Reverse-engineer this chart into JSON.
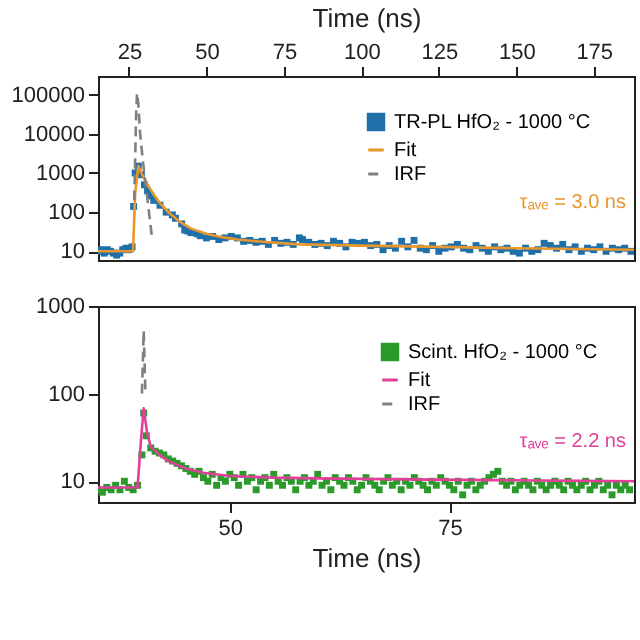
{
  "chart_data": [
    {
      "type": "scatter",
      "xlabel": "Time (ns)",
      "xlim": [
        15,
        188
      ],
      "xticks": [
        25,
        50,
        75,
        100,
        125,
        150,
        175
      ],
      "ylim": [
        6,
        300000
      ],
      "yticks": [
        10,
        100,
        1000,
        10000,
        100000
      ],
      "log": "y",
      "legend": "top right",
      "annotations": [
        "τₐᵥₑ = 3.0 ns"
      ],
      "series": [
        {
          "name": "TR-PL  HfO₂ - 1000 °C",
          "marker": "square",
          "color": "#1f6fa8",
          "x": [
            15,
            16,
            17,
            18,
            19,
            20,
            21,
            22,
            23,
            24,
            25,
            26,
            26.5,
            27,
            28,
            29,
            30,
            31,
            32,
            33,
            35,
            37,
            39,
            40,
            42,
            43,
            44,
            45,
            47,
            48,
            50,
            52,
            54,
            56,
            58,
            60,
            62,
            64,
            66,
            68,
            70,
            72,
            74,
            76,
            78,
            80,
            81,
            83,
            85,
            87,
            89,
            91,
            93,
            95,
            97,
            99,
            101,
            103,
            105,
            107,
            109,
            111,
            113,
            115,
            117,
            119,
            121,
            123,
            125,
            127,
            129,
            131,
            133,
            135,
            137,
            139,
            141,
            143,
            145,
            147,
            149,
            151,
            153,
            155,
            157,
            159,
            161,
            163,
            165,
            167,
            169,
            171,
            173,
            175,
            177,
            179,
            181,
            183,
            185,
            187
          ],
          "values": [
            10,
            11,
            9,
            11,
            10,
            9,
            8,
            9,
            11,
            12,
            11,
            13,
            140,
            1000,
            1500,
            900,
            500,
            350,
            260,
            200,
            150,
            100,
            85,
            70,
            50,
            35,
            33,
            30,
            28,
            25,
            22,
            24,
            20,
            22,
            24,
            22,
            18,
            19,
            17,
            18,
            15,
            19,
            16,
            17,
            15,
            22,
            20,
            17,
            15,
            16,
            14,
            18,
            16,
            13,
            17,
            16,
            17,
            14,
            15,
            11,
            14,
            12,
            18,
            13,
            19,
            12,
            11,
            14,
            10,
            12,
            13,
            15,
            12,
            11,
            14,
            12,
            10,
            13,
            11,
            12,
            10,
            9,
            12,
            10,
            11,
            16,
            14,
            12,
            15,
            11,
            13,
            10,
            12,
            11,
            13,
            10,
            12,
            11,
            12,
            10
          ]
        },
        {
          "name": "Fit",
          "type": "line",
          "line_style": "solid",
          "color": "#e8962e",
          "x": [
            15,
            26.3,
            27,
            28,
            29,
            30,
            31,
            33,
            35,
            38,
            41,
            45,
            50,
            55,
            60,
            70,
            80,
            100,
            125,
            150,
            188
          ],
          "values": [
            10,
            10,
            300,
            1500,
            1000,
            700,
            500,
            280,
            170,
            95,
            60,
            38,
            28,
            23,
            20,
            17,
            15,
            14,
            13,
            12,
            11
          ]
        },
        {
          "name": "IRF",
          "type": "line",
          "line_style": "dashed",
          "color": "#808080",
          "x": [
            26.7,
            27.3,
            27.6,
            28,
            28.6,
            29.5,
            31,
            32.5
          ],
          "values": [
            200,
            30000,
            110000,
            60000,
            10000,
            2000,
            200,
            20
          ]
        }
      ]
    },
    {
      "type": "scatter",
      "xlabel": "Time (ns)",
      "xlim": [
        35,
        96
      ],
      "xticks": [
        50,
        75
      ],
      "ylim": [
        5.8,
        1000
      ],
      "yticks": [
        10,
        100,
        1000
      ],
      "log": "y",
      "legend": "top right",
      "annotations": [
        "τₐᵥₑ = 2.2 ns"
      ],
      "series": [
        {
          "name": "Scint. HfO₂ - 1000 °C",
          "marker": "square",
          "color": "#2a9a2a",
          "x": [
            35,
            35.5,
            36,
            36.5,
            37,
            37.5,
            38,
            38.5,
            39,
            39.5,
            40,
            40.2,
            40.5,
            41,
            41.5,
            42,
            42.5,
            43,
            43.5,
            44,
            44.5,
            45,
            45.5,
            46,
            46.5,
            47,
            47.5,
            48,
            48.5,
            49,
            49.5,
            50,
            50.5,
            51,
            51.5,
            52,
            52.5,
            53,
            53.5,
            54,
            54.5,
            55,
            55.5,
            56,
            56.5,
            57,
            57.5,
            58,
            58.5,
            59,
            59.5,
            60,
            60.5,
            61,
            61.5,
            62,
            62.5,
            63,
            63.5,
            64,
            64.5,
            65,
            65.5,
            66,
            66.5,
            67,
            67.5,
            68,
            68.5,
            69,
            69.5,
            70,
            70.5,
            71,
            71.5,
            72,
            72.5,
            73,
            73.5,
            74,
            74.5,
            75,
            75.5,
            76,
            76.5,
            77,
            77.5,
            78,
            78.5,
            79,
            79.5,
            80,
            80.5,
            81,
            81.5,
            82,
            82.5,
            83,
            83.5,
            84,
            84.5,
            85,
            85.5,
            86,
            86.5,
            87,
            87.5,
            88,
            88.5,
            89,
            89.5,
            90,
            90.5,
            91,
            91.5,
            92,
            92.5,
            93,
            93.5,
            94,
            94.5,
            95,
            95.5
          ],
          "values": [
            8,
            7.5,
            8.5,
            8,
            9,
            8,
            10,
            8.5,
            8,
            9,
            20,
            60,
            33,
            24,
            22,
            21,
            20,
            18,
            17,
            16,
            15,
            14,
            13,
            12,
            13,
            11,
            10,
            12,
            9,
            11,
            10,
            12,
            11,
            9,
            12,
            10,
            11,
            8,
            10,
            11,
            9,
            12,
            10,
            9,
            11,
            10,
            8,
            10,
            11,
            9,
            10,
            12,
            9,
            10,
            8,
            11,
            10,
            9,
            11,
            10,
            8,
            9,
            11,
            10,
            9,
            8,
            10,
            11,
            9,
            10,
            8,
            10,
            9,
            11,
            10,
            9,
            8,
            10,
            9,
            11,
            10,
            9,
            8,
            10,
            7,
            9,
            10,
            8,
            9,
            10,
            11,
            12,
            13,
            10,
            9,
            10,
            8,
            9,
            10,
            9,
            8,
            10,
            9,
            8,
            9,
            10,
            9,
            8,
            10,
            9,
            8,
            9,
            10,
            8,
            9,
            10,
            8,
            9,
            7,
            9,
            8,
            9,
            8
          ]
        },
        {
          "name": "Fit",
          "type": "line",
          "line_style": "solid",
          "color": "#e0409a",
          "x": [
            35,
            39.5,
            39.9,
            40.2,
            40.6,
            41,
            42,
            43,
            45,
            47,
            50,
            55,
            60,
            70,
            80,
            90,
            96
          ],
          "values": [
            8.5,
            8.5,
            30,
            68,
            35,
            25,
            20,
            17,
            14,
            12.5,
            11.5,
            11,
            10.8,
            10.5,
            10.3,
            10.1,
            10
          ]
        },
        {
          "name": "IRF",
          "type": "line",
          "line_style": "dashed",
          "color": "#808080",
          "x": [
            40,
            40.2,
            40.4
          ],
          "values": [
            100,
            525,
            100
          ]
        }
      ]
    }
  ]
}
